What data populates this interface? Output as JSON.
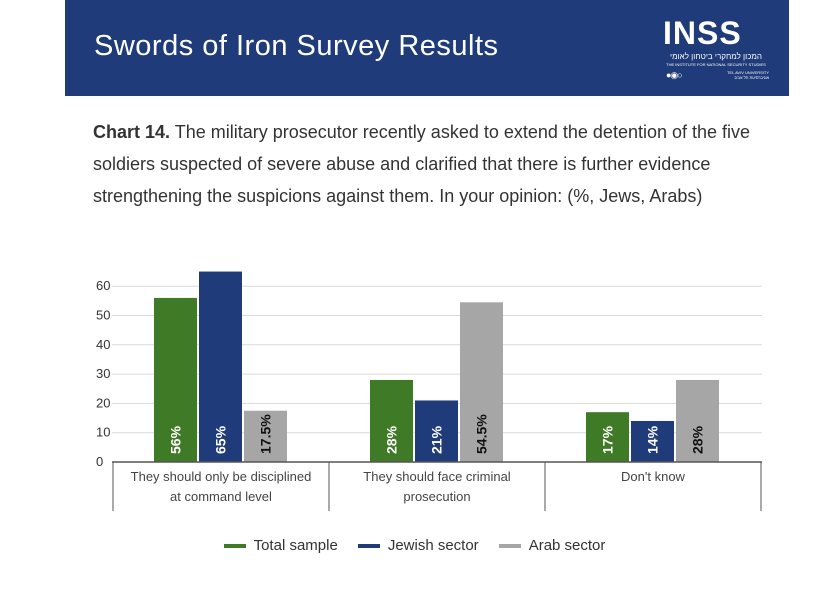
{
  "header": {
    "title": "Swords of Iron Survey Results",
    "logo": {
      "word": "INSS",
      "hebrew": "המכון למחקרי ביטחון לאומי",
      "english": "THE INSTITUTE FOR NATIONAL SECURITY STUDIES",
      "university_hebrew": "אוניברסיטת תל אביב",
      "university_english": "TEL AVIV UNIVERSITY"
    }
  },
  "caption": {
    "label": "Chart 14.",
    "text": "The military prosecutor recently asked to extend the detention of the five soldiers suspected of severe abuse and clarified that there is further evidence strengthening the suspicions against them. In your opinion: (%, Jews, Arabs)"
  },
  "colors": {
    "header": "#1f3b7a",
    "total": "#3f7a26",
    "jewish": "#1f3b7a",
    "arab": "#a6a6a6"
  },
  "chart_data": {
    "type": "bar",
    "categories": [
      [
        "They should only be disciplined",
        "at command level"
      ],
      [
        "They should face criminal",
        "prosecution"
      ],
      [
        "Don't know"
      ]
    ],
    "series": [
      {
        "name": "Total sample",
        "values": [
          56,
          28,
          17
        ],
        "labels": [
          "56%",
          "28%",
          "17%"
        ],
        "color": "#3f7a26"
      },
      {
        "name": "Jewish sector",
        "values": [
          65,
          21,
          14
        ],
        "labels": [
          "65%",
          "21%",
          "14%"
        ],
        "color": "#1f3b7a"
      },
      {
        "name": "Arab sector",
        "values": [
          17.5,
          54.5,
          28
        ],
        "labels": [
          "17.5%",
          "54.5%",
          "28%"
        ],
        "color": "#a6a6a6"
      }
    ],
    "yticks": [
      0,
      10,
      20,
      30,
      40,
      50,
      60
    ],
    "ylim": [
      0,
      65
    ],
    "legend": "bottom"
  }
}
